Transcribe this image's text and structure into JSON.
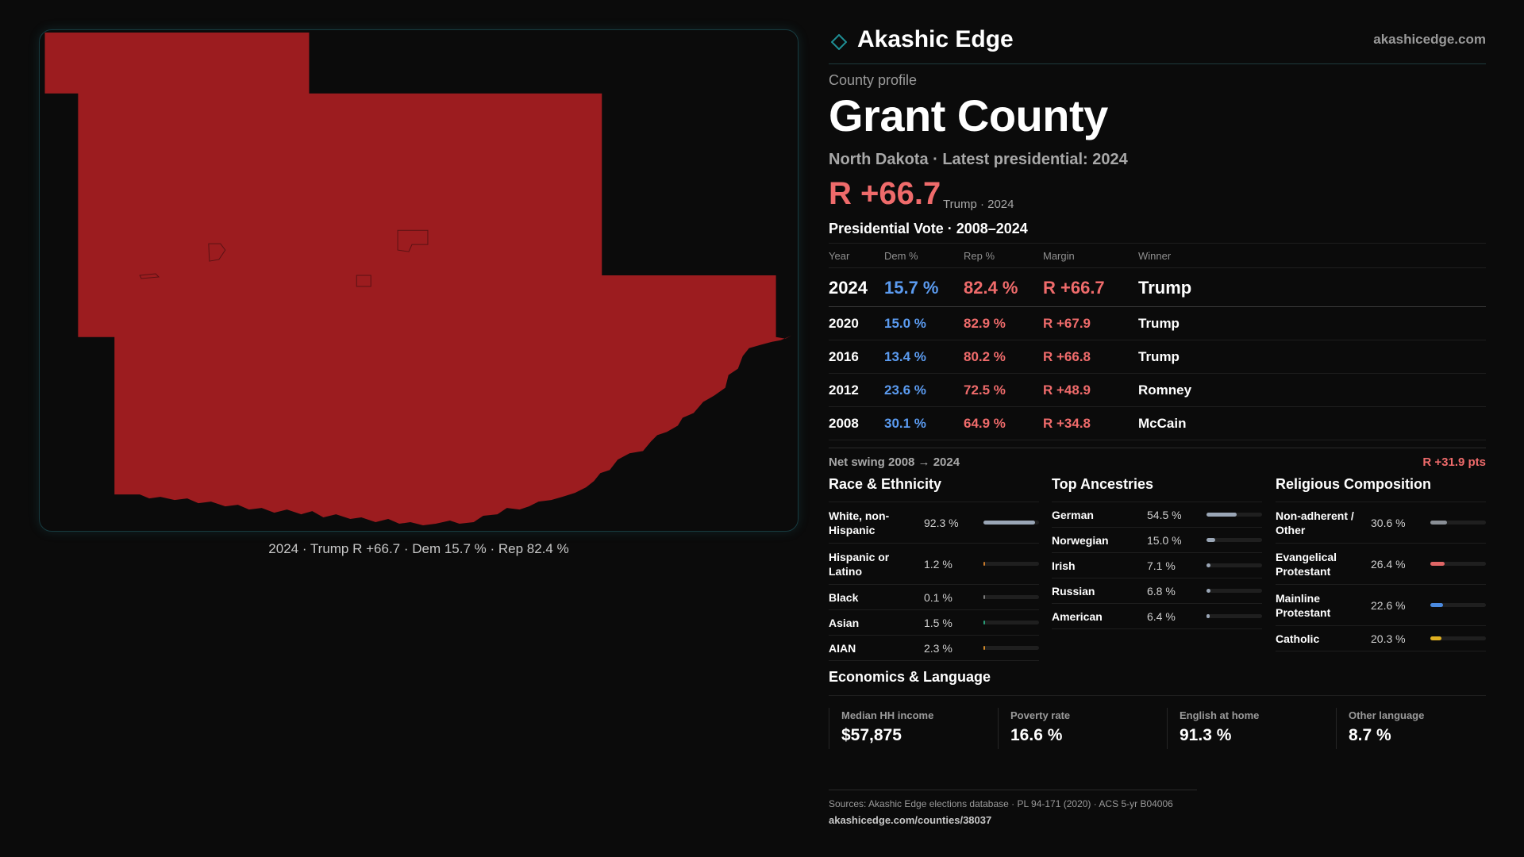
{
  "map": {
    "caption": "2024 · Trump R +66.7 · Dem 15.7 % · Rep 82.4 %",
    "fill_color": "#9c1c1f"
  },
  "header": {
    "brand": "Akashic Edge",
    "site": "akashicedge.com",
    "logo_icon": "diamond-icon"
  },
  "profile": {
    "kicker": "County profile",
    "title": "Grant County",
    "subtitle": "North Dakota · Latest presidential: 2024",
    "margin": "R +66.7",
    "margin_note": "Trump · 2024"
  },
  "votes": {
    "title": "Presidential Vote · 2008–2024",
    "headers": {
      "year": "Year",
      "dem": "Dem %",
      "rep": "Rep %",
      "margin": "Margin",
      "winner": "Winner"
    },
    "rows": [
      {
        "year": "2024",
        "dem": "15.7 %",
        "rep": "82.4 %",
        "margin": "R +66.7",
        "winner": "Trump"
      },
      {
        "year": "2020",
        "dem": "15.0 %",
        "rep": "82.9 %",
        "margin": "R +67.9",
        "winner": "Trump"
      },
      {
        "year": "2016",
        "dem": "13.4 %",
        "rep": "80.2 %",
        "margin": "R +66.8",
        "winner": "Trump"
      },
      {
        "year": "2012",
        "dem": "23.6 %",
        "rep": "72.5 %",
        "margin": "R +48.9",
        "winner": "Romney"
      },
      {
        "year": "2008",
        "dem": "30.1 %",
        "rep": "64.9 %",
        "margin": "R +34.8",
        "winner": "McCain"
      }
    ]
  },
  "swing": {
    "label": "Net swing 2008 → 2024",
    "value": "R +31.9 pts"
  },
  "race": {
    "title": "Race & Ethnicity",
    "items": [
      {
        "label": "White, non-Hispanic",
        "value": "92.3 %",
        "fraction": 0.923,
        "color": "#9aa6b6"
      },
      {
        "label": "Hispanic or Latino",
        "value": "1.2 %",
        "fraction": 0.012,
        "color": "#c97a2a"
      },
      {
        "label": "Black",
        "value": "0.1 %",
        "fraction": 0.001,
        "color": "#7b7b7b"
      },
      {
        "label": "Asian",
        "value": "1.5 %",
        "fraction": 0.015,
        "color": "#2aa07a"
      },
      {
        "label": "AIAN",
        "value": "2.3 %",
        "fraction": 0.023,
        "color": "#d08a2a"
      }
    ]
  },
  "ancestry": {
    "title": "Top Ancestries",
    "items": [
      {
        "label": "German",
        "value": "54.5 %",
        "fraction": 0.545,
        "color": "#9aa6b6"
      },
      {
        "label": "Norwegian",
        "value": "15.0 %",
        "fraction": 0.15,
        "color": "#9aa6b6"
      },
      {
        "label": "Irish",
        "value": "7.1 %",
        "fraction": 0.071,
        "color": "#9aa6b6"
      },
      {
        "label": "Russian",
        "value": "6.8 %",
        "fraction": 0.068,
        "color": "#9aa6b6"
      },
      {
        "label": "American",
        "value": "6.4 %",
        "fraction": 0.064,
        "color": "#9aa6b6"
      }
    ]
  },
  "religion": {
    "title": "Religious Composition",
    "items": [
      {
        "label": "Non-adherent / Other",
        "value": "30.6 %",
        "fraction": 0.306,
        "color": "#8a8f96"
      },
      {
        "label": "Evangelical Protestant",
        "value": "26.4 %",
        "fraction": 0.264,
        "color": "#e06666"
      },
      {
        "label": "Mainline Protestant",
        "value": "22.6 %",
        "fraction": 0.226,
        "color": "#4a8ae0"
      },
      {
        "label": "Catholic",
        "value": "20.3 %",
        "fraction": 0.203,
        "color": "#e0b020"
      }
    ]
  },
  "economics": {
    "title": "Economics & Language",
    "items": [
      {
        "label": "Median HH income",
        "value": "$57,875"
      },
      {
        "label": "Poverty rate",
        "value": "16.6 %"
      },
      {
        "label": "English at home",
        "value": "91.3 %"
      },
      {
        "label": "Other language",
        "value": "8.7 %"
      }
    ]
  },
  "sources": {
    "line1": "Sources: Akashic Edge elections database · PL 94-171 (2020) · ACS 5-yr B04006",
    "line2": "akashicedge.com/counties/38037"
  }
}
